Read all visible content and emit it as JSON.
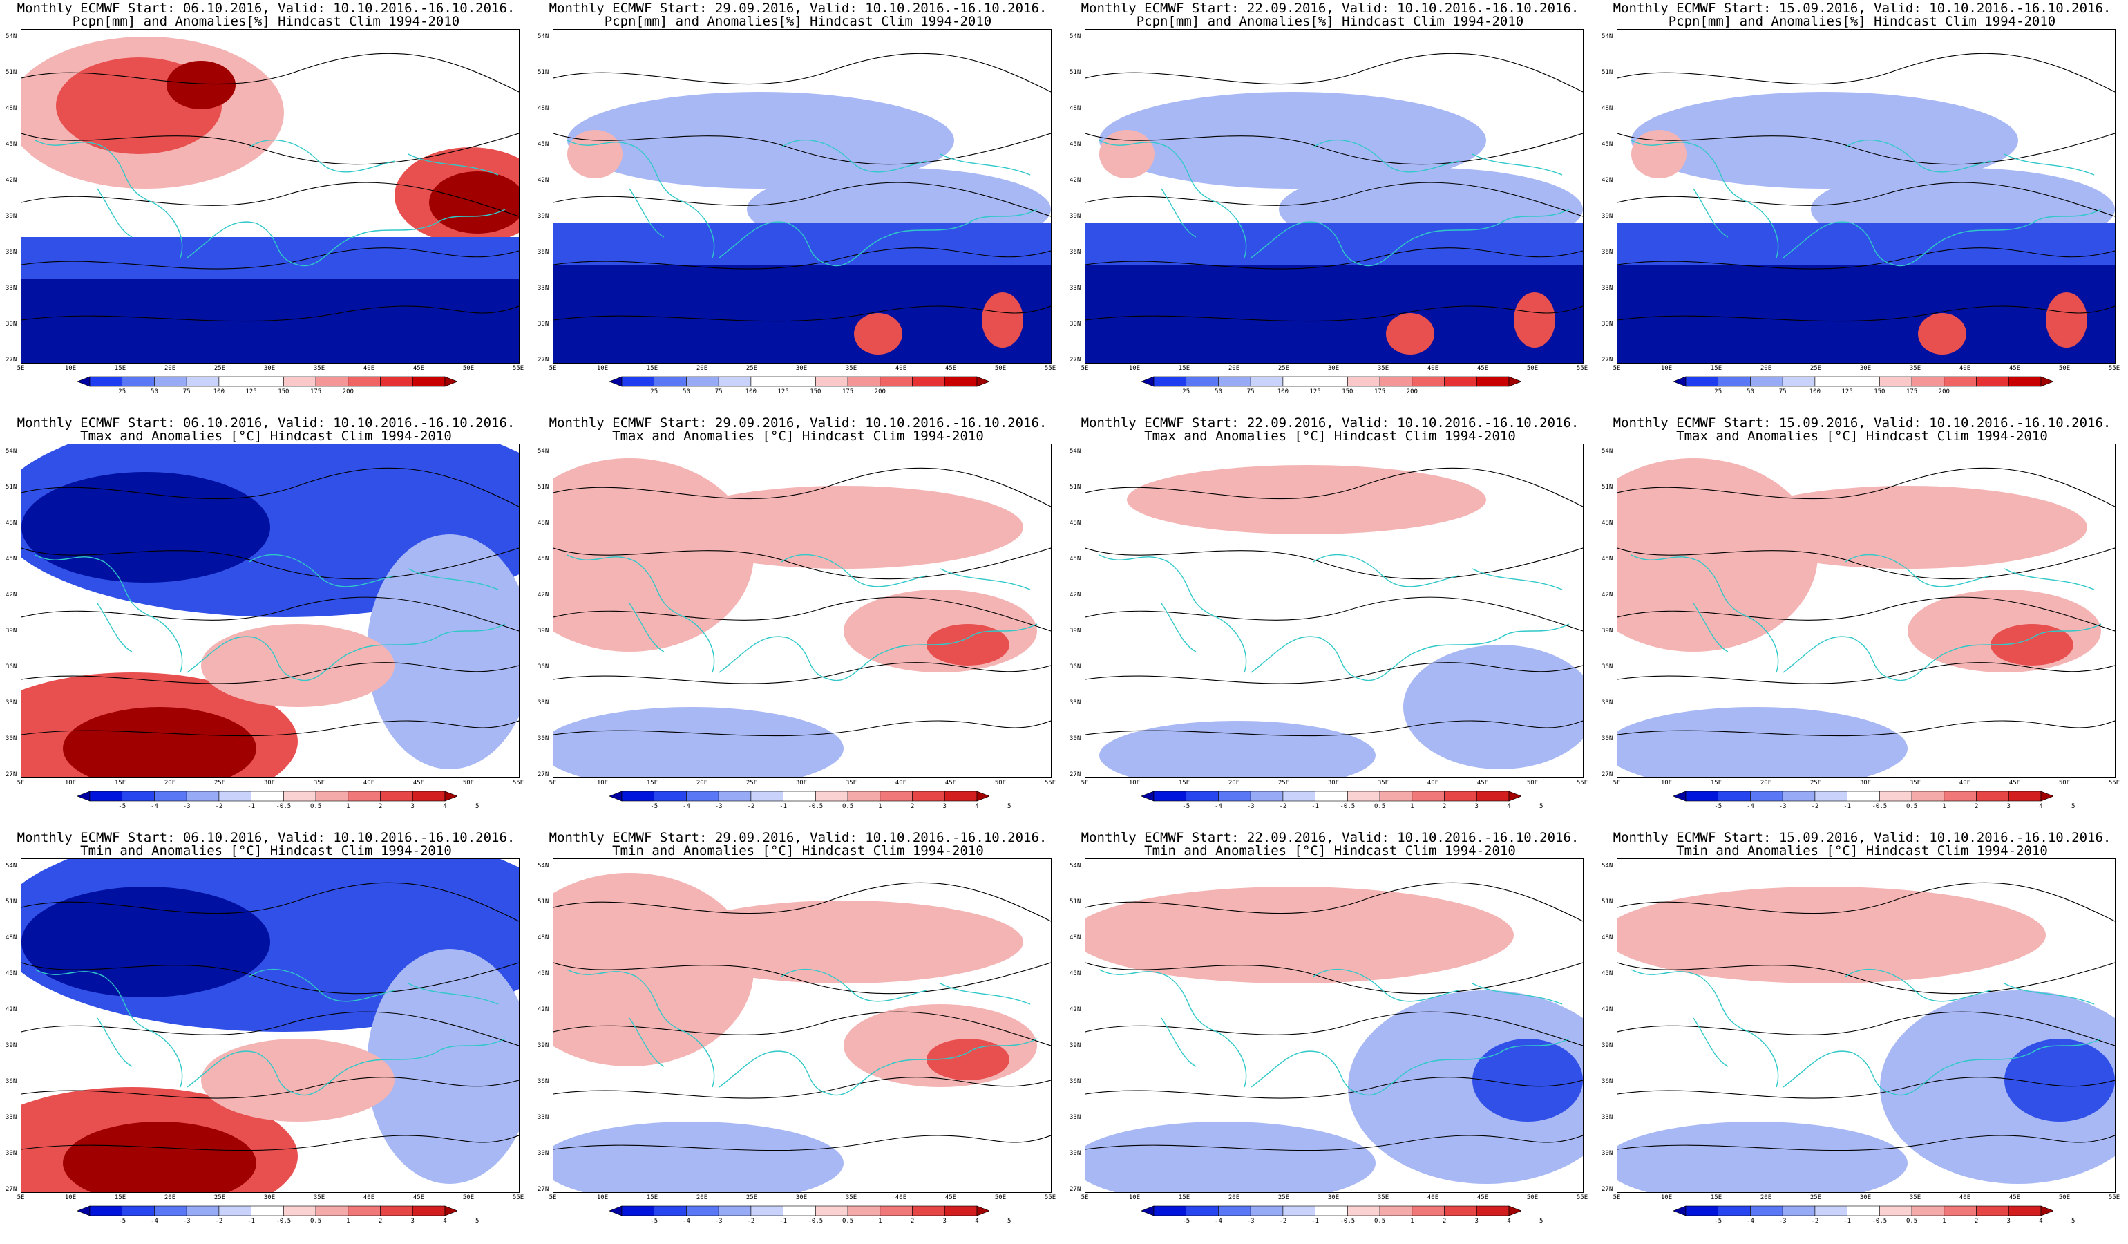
{
  "figure": {
    "panels": [
      {
        "row": 0,
        "col": 0,
        "title_line1": "Monthly ECMWF Start: 06.10.2016, Valid: 10.10.2016.-16.10.2016.",
        "title_line2": "Pcpn[mm] and Anomalies[%] Hindcast Clim 1994-2010",
        "variable": "precipitation",
        "anomaly_field": "wet-north-dry-south"
      },
      {
        "row": 0,
        "col": 1,
        "title_line1": "Monthly ECMWF Start: 29.09.2016, Valid: 10.10.2016.-16.10.2016.",
        "title_line2": "Pcpn[mm] and Anomalies[%] Hindcast Clim 1994-2010",
        "variable": "precipitation",
        "anomaly_field": "mostly-dry"
      },
      {
        "row": 0,
        "col": 2,
        "title_line1": "Monthly ECMWF Start: 22.09.2016, Valid: 10.10.2016.-16.10.2016.",
        "title_line2": "Pcpn[mm] and Anomalies[%] Hindcast Clim 1994-2010",
        "variable": "precipitation",
        "anomaly_field": "mostly-dry"
      },
      {
        "row": 0,
        "col": 3,
        "title_line1": "Monthly ECMWF Start: 15.09.2016, Valid: 10.10.2016.-16.10.2016.",
        "title_line2": "Pcpn[mm] and Anomalies[%] Hindcast Clim 1994-2010",
        "variable": "precipitation",
        "anomaly_field": "mostly-dry"
      },
      {
        "row": 1,
        "col": 0,
        "title_line1": "Monthly ECMWF Start: 06.10.2016, Valid: 10.10.2016.-16.10.2016.",
        "title_line2": "Tmax and Anomalies [°C] Hindcast Clim 1994-2010",
        "variable": "tmax",
        "anomaly_field": "cold-north-warm-south"
      },
      {
        "row": 1,
        "col": 1,
        "title_line1": "Monthly ECMWF Start: 29.09.2016, Valid: 10.10.2016.-16.10.2016.",
        "title_line2": "Tmax and Anomalies [°C] Hindcast Clim 1994-2010",
        "variable": "tmax",
        "anomaly_field": "mild-warm"
      },
      {
        "row": 1,
        "col": 2,
        "title_line1": "Monthly ECMWF Start: 22.09.2016, Valid: 10.10.2016.-16.10.2016.",
        "title_line2": "Tmax and Anomalies [°C] Hindcast Clim 1994-2010",
        "variable": "tmax",
        "anomaly_field": "near-normal"
      },
      {
        "row": 1,
        "col": 3,
        "title_line1": "Monthly ECMWF Start: 15.09.2016, Valid: 10.10.2016.-16.10.2016.",
        "title_line2": "Tmax and Anomalies [°C] Hindcast Clim 1994-2010",
        "variable": "tmax",
        "anomaly_field": "mild-warm"
      },
      {
        "row": 2,
        "col": 0,
        "title_line1": "Monthly ECMWF Start: 06.10.2016, Valid: 10.10.2016.-16.10.2016.",
        "title_line2": "Tmin and Anomalies [°C] Hindcast Clim 1994-2010",
        "variable": "tmin",
        "anomaly_field": "cold-north-warm-south"
      },
      {
        "row": 2,
        "col": 1,
        "title_line1": "Monthly ECMWF Start: 29.09.2016, Valid: 10.10.2016.-16.10.2016.",
        "title_line2": "Tmin and Anomalies [°C] Hindcast Clim 1994-2010",
        "variable": "tmin",
        "anomaly_field": "mild-warm"
      },
      {
        "row": 2,
        "col": 2,
        "title_line1": "Monthly ECMWF Start: 22.09.2016, Valid: 10.10.2016.-16.10.2016.",
        "title_line2": "Tmin and Anomalies [°C] Hindcast Clim 1994-2010",
        "variable": "tmin",
        "anomaly_field": "cool-east"
      },
      {
        "row": 2,
        "col": 3,
        "title_line1": "Monthly ECMWF Start: 15.09.2016, Valid: 10.10.2016.-16.10.2016.",
        "title_line2": "Tmin and Anomalies [°C] Hindcast Clim 1994-2010",
        "variable": "tmin",
        "anomaly_field": "cool-east"
      }
    ],
    "latitude_ticks": [
      "54N",
      "51N",
      "48N",
      "45N",
      "42N",
      "39N",
      "36N",
      "33N",
      "30N",
      "27N"
    ],
    "longitude_ticks": [
      "5E",
      "10E",
      "15E",
      "20E",
      "25E",
      "30E",
      "35E",
      "40E",
      "45E",
      "50E",
      "55E"
    ],
    "precip_colorbar": {
      "labels": [
        "25",
        "50",
        "75",
        "100",
        "125",
        "150",
        "175",
        "200"
      ],
      "colors": [
        "#0000a0",
        "#1e3cf0",
        "#5a78f5",
        "#96aaf5",
        "#c8d2fa",
        "#ffffff",
        "#ffffff",
        "#fac8c8",
        "#f59696",
        "#f06464",
        "#e63232",
        "#c80000",
        "#a00000"
      ]
    },
    "temp_colorbar": {
      "labels": [
        "-5",
        "-4",
        "-3",
        "-2",
        "-1",
        "-0.5",
        "0.5",
        "1",
        "2",
        "3",
        "4",
        "5"
      ],
      "colors": [
        "#0000a0",
        "#0014dc",
        "#2846f0",
        "#5a78f5",
        "#96aaf5",
        "#c8d2fa",
        "#ffffff",
        "#fad2d2",
        "#f5aaaa",
        "#f07878",
        "#e64646",
        "#d21e1e",
        "#a00000"
      ]
    },
    "colors": {
      "coastline": "#30c8c8",
      "contour": "#000000",
      "blue_strong": "#0010a0",
      "blue_mid": "#3050e8",
      "blue_light": "#a8b8f4",
      "red_light": "#f4b4b4",
      "red_mid": "#e85050",
      "red_strong": "#a00000"
    }
  }
}
